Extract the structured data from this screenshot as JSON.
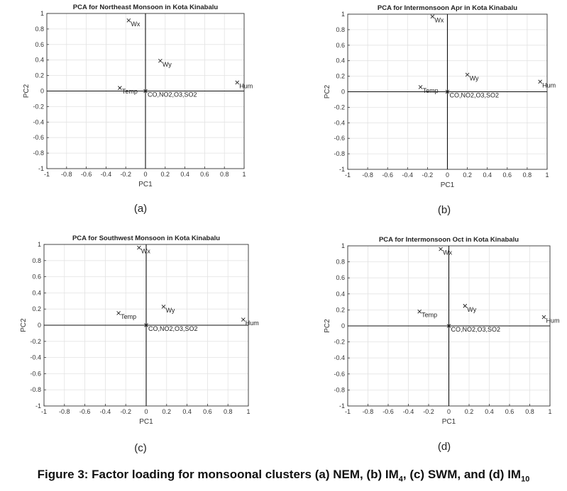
{
  "chart_data": [
    {
      "type": "scatter",
      "title": "PCA for Northeast Monsoon in Kota Kinabalu",
      "xlabel": "PC1",
      "ylabel": "PC2",
      "xlim": [
        -1,
        1
      ],
      "ylim": [
        -1,
        1
      ],
      "ticks": [
        "-1",
        "-0.8",
        "-0.6",
        "-0.4",
        "-0.2",
        "0",
        "0.2",
        "0.4",
        "0.6",
        "0.8",
        "1"
      ],
      "grid": true,
      "points": [
        {
          "label": "Wx",
          "x": -0.17,
          "y": 0.91
        },
        {
          "label": "Wy",
          "x": 0.15,
          "y": 0.39
        },
        {
          "label": "Hum",
          "x": 0.93,
          "y": 0.11
        },
        {
          "label": "Temp",
          "x": -0.26,
          "y": 0.04
        },
        {
          "label": "CO,NO2,O3,SO2",
          "x": 0.0,
          "y": 0.0
        }
      ]
    },
    {
      "type": "scatter",
      "title": "PCA for Intermonsoon Apr in Kota Kinabalu",
      "xlabel": "PC1",
      "ylabel": "PC2",
      "xlim": [
        -1,
        1
      ],
      "ylim": [
        -1,
        1
      ],
      "ticks": [
        "-1",
        "-0.8",
        "-0.6",
        "-0.4",
        "-0.2",
        "0",
        "0.2",
        "0.4",
        "0.6",
        "0.8",
        "1"
      ],
      "grid": true,
      "points": [
        {
          "label": "Wx",
          "x": -0.15,
          "y": 0.97
        },
        {
          "label": "Wy",
          "x": 0.2,
          "y": 0.22
        },
        {
          "label": "Hum",
          "x": 0.93,
          "y": 0.13
        },
        {
          "label": "Temp",
          "x": -0.27,
          "y": 0.06
        },
        {
          "label": "CO,NO2,O3,SO2",
          "x": 0.0,
          "y": 0.0
        }
      ]
    },
    {
      "type": "scatter",
      "title": "PCA for Southwest Monsoon in Kota Kinabalu",
      "xlabel": "PC1",
      "ylabel": "PC2",
      "xlim": [
        -1,
        1
      ],
      "ylim": [
        -1,
        1
      ],
      "ticks": [
        "-1",
        "-0.8",
        "-0.6",
        "-0.4",
        "-0.2",
        "0",
        "0.2",
        "0.4",
        "0.6",
        "0.8",
        "1"
      ],
      "grid": true,
      "points": [
        {
          "label": "Wx",
          "x": -0.07,
          "y": 0.96
        },
        {
          "label": "Wy",
          "x": 0.17,
          "y": 0.23
        },
        {
          "label": "Hum",
          "x": 0.95,
          "y": 0.07
        },
        {
          "label": "Temp",
          "x": -0.27,
          "y": 0.15
        },
        {
          "label": "CO,NO2,O3,SO2",
          "x": 0.0,
          "y": 0.0
        }
      ]
    },
    {
      "type": "scatter",
      "title": "PCA for Intermonsoon Oct in Kota Kinabalu",
      "xlabel": "PC1",
      "ylabel": "PC2",
      "xlim": [
        -1,
        1
      ],
      "ylim": [
        -1,
        1
      ],
      "ticks": [
        "-1",
        "-0.8",
        "-0.6",
        "-0.4",
        "-0.2",
        "0",
        "0.2",
        "0.4",
        "0.6",
        "0.8",
        "1"
      ],
      "grid": true,
      "points": [
        {
          "label": "Wx",
          "x": -0.08,
          "y": 0.96
        },
        {
          "label": "Wy",
          "x": 0.16,
          "y": 0.25
        },
        {
          "label": "Hum",
          "x": 0.94,
          "y": 0.11
        },
        {
          "label": "Temp",
          "x": -0.29,
          "y": 0.18
        },
        {
          "label": "CO,NO2,O3,SO2",
          "x": 0.0,
          "y": 0.0
        }
      ]
    }
  ],
  "subcaptions": [
    "(a)",
    "(b)",
    "(c)",
    "(d)"
  ],
  "figure_caption": {
    "prefix": "Figure 3: Factor loading for monsoonal clusters (a) NEM, (b) IM",
    "sub1": "4",
    "mid": ", (c) SWM, and (d) IM",
    "sub2": "10"
  }
}
